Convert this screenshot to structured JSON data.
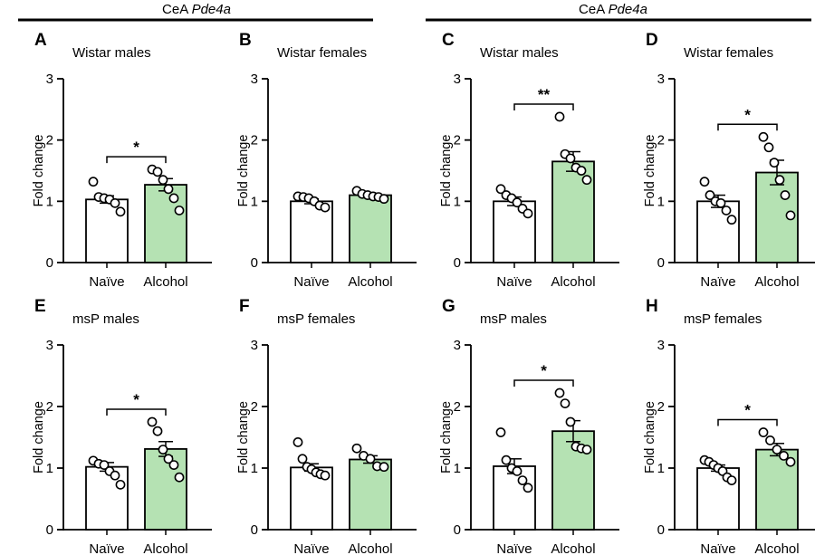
{
  "headers": [
    {
      "prefix": "CeA ",
      "gene": "Pde4a"
    },
    {
      "prefix": "CeA ",
      "gene": "Pde4a"
    }
  ],
  "colors": {
    "naive_fill": "#ffffff",
    "alcohol_fill": "#b5e2b3",
    "line": "#000000"
  },
  "chart_data": [
    {
      "type": "bar",
      "label": "A",
      "title": "Wistar males",
      "ylabel": "Fold change",
      "ylim": [
        0,
        3
      ],
      "yticks": [
        0,
        1,
        2,
        3
      ],
      "categories": [
        "Naïve",
        "Alcohol"
      ],
      "values": [
        1.03,
        1.27
      ],
      "sem": [
        0.06,
        0.1
      ],
      "points": [
        [
          1.32,
          1.07,
          1.05,
          1.03,
          0.97,
          0.83
        ],
        [
          1.52,
          1.48,
          1.35,
          1.2,
          1.05,
          0.85
        ]
      ],
      "significance": "*"
    },
    {
      "type": "bar",
      "label": "B",
      "title": "Wistar females",
      "ylabel": "Fold change",
      "ylim": [
        0,
        3
      ],
      "yticks": [
        0,
        1,
        2,
        3
      ],
      "categories": [
        "Naïve",
        "Alcohol"
      ],
      "values": [
        1.0,
        1.1
      ],
      "sem": [
        0.04,
        0.03
      ],
      "points": [
        [
          1.08,
          1.07,
          1.05,
          1.0,
          0.93,
          0.9
        ],
        [
          1.17,
          1.12,
          1.1,
          1.08,
          1.07,
          1.04
        ]
      ],
      "significance": ""
    },
    {
      "type": "bar",
      "label": "C",
      "title": "Wistar males",
      "ylabel": "Fold change",
      "ylim": [
        0,
        3
      ],
      "yticks": [
        0,
        1,
        2,
        3
      ],
      "categories": [
        "Naïve",
        "Alcohol"
      ],
      "values": [
        1.0,
        1.65
      ],
      "sem": [
        0.07,
        0.16
      ],
      "points": [
        [
          1.2,
          1.1,
          1.05,
          0.98,
          0.88,
          0.8
        ],
        [
          2.38,
          1.77,
          1.7,
          1.55,
          1.5,
          1.35
        ]
      ],
      "significance": "**"
    },
    {
      "type": "bar",
      "label": "D",
      "title": "Wistar females",
      "ylabel": "Fold change",
      "ylim": [
        0,
        3
      ],
      "yticks": [
        0,
        1,
        2,
        3
      ],
      "categories": [
        "Naïve",
        "Alcohol"
      ],
      "values": [
        1.0,
        1.47
      ],
      "sem": [
        0.1,
        0.2
      ],
      "points": [
        [
          1.32,
          1.1,
          1.0,
          0.97,
          0.85,
          0.7
        ],
        [
          2.05,
          1.88,
          1.63,
          1.35,
          1.1,
          0.77
        ]
      ],
      "significance": "*"
    },
    {
      "type": "bar",
      "label": "E",
      "title": "msP males",
      "ylabel": "Fold change",
      "ylim": [
        0,
        3
      ],
      "yticks": [
        0,
        1,
        2,
        3
      ],
      "categories": [
        "Naïve",
        "Alcohol"
      ],
      "values": [
        1.02,
        1.31
      ],
      "sem": [
        0.07,
        0.12
      ],
      "points": [
        [
          1.12,
          1.07,
          1.05,
          0.95,
          0.88,
          0.73
        ],
        [
          1.75,
          1.6,
          1.3,
          1.15,
          1.05,
          0.85
        ]
      ],
      "significance": "*"
    },
    {
      "type": "bar",
      "label": "F",
      "title": "msP females",
      "ylabel": "Fold change",
      "ylim": [
        0,
        3
      ],
      "yticks": [
        0,
        1,
        2,
        3
      ],
      "categories": [
        "Naïve",
        "Alcohol"
      ],
      "values": [
        1.01,
        1.14
      ],
      "sem": [
        0.06,
        0.06
      ],
      "points": [
        [
          1.42,
          1.15,
          1.02,
          0.98,
          0.93,
          0.9,
          0.88
        ],
        [
          1.32,
          1.2,
          1.15,
          1.03,
          1.02
        ]
      ],
      "significance": ""
    },
    {
      "type": "bar",
      "label": "G",
      "title": "msP males",
      "ylabel": "Fold change",
      "ylim": [
        0,
        3
      ],
      "yticks": [
        0,
        1,
        2,
        3
      ],
      "categories": [
        "Naïve",
        "Alcohol"
      ],
      "values": [
        1.03,
        1.6
      ],
      "sem": [
        0.12,
        0.17
      ],
      "points": [
        [
          1.58,
          1.13,
          1.0,
          0.95,
          0.8,
          0.68
        ],
        [
          2.22,
          2.05,
          1.75,
          1.35,
          1.32,
          1.3
        ]
      ],
      "significance": "*"
    },
    {
      "type": "bar",
      "label": "H",
      "title": "msP females",
      "ylabel": "Fold change",
      "ylim": [
        0,
        3
      ],
      "yticks": [
        0,
        1,
        2,
        3
      ],
      "categories": [
        "Naïve",
        "Alcohol"
      ],
      "values": [
        1.0,
        1.3
      ],
      "sem": [
        0.05,
        0.1
      ],
      "points": [
        [
          1.13,
          1.1,
          1.05,
          1.0,
          0.95,
          0.85,
          0.8
        ],
        [
          1.58,
          1.45,
          1.3,
          1.2,
          1.1
        ]
      ],
      "significance": "*"
    }
  ]
}
